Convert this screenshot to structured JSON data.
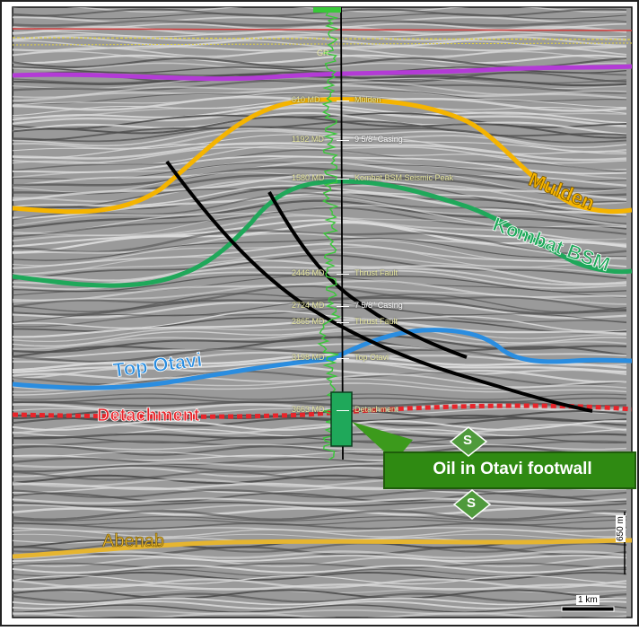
{
  "horizons": {
    "mulden": "Mulden",
    "kombat_bsm": "Kombat BSM",
    "top_otavi": "Top Otavi",
    "detachment": "Detachment",
    "abenab": "Abenab"
  },
  "well": {
    "top_marker": "GR",
    "depth_markers": [
      {
        "depth": "610 MD",
        "label": "Mulden"
      },
      {
        "depth": "1192 MD",
        "label": "9 5/8\" Casing"
      },
      {
        "depth": "1580 MD",
        "label": "Kombat BSM Seismic Peak"
      },
      {
        "depth": "2446 MD",
        "label": "Thrust Fault"
      },
      {
        "depth": "2724 MD",
        "label": "7 5/8\" Casing"
      },
      {
        "depth": "2865 MD",
        "label": "Thrust Fault"
      },
      {
        "depth": "3198 MD",
        "label": "Top Otavi"
      },
      {
        "depth": "3663 MD",
        "label": "Detachment"
      }
    ]
  },
  "callout": {
    "text": "Oil in Otavi footwall"
  },
  "seal_marker": {
    "symbol": "S"
  },
  "scale": {
    "horizontal": "1 km",
    "vertical": "650 m"
  },
  "colors": {
    "mulden": "#f5b400",
    "kombat": "#1fa85a",
    "top_otavi": "#2a8de0",
    "detachment": "#e8242a",
    "abenab": "#e6b530",
    "callout_green": "#3c9a1c",
    "purple": "#b33bd6",
    "diamond": "#4f9a3c"
  }
}
